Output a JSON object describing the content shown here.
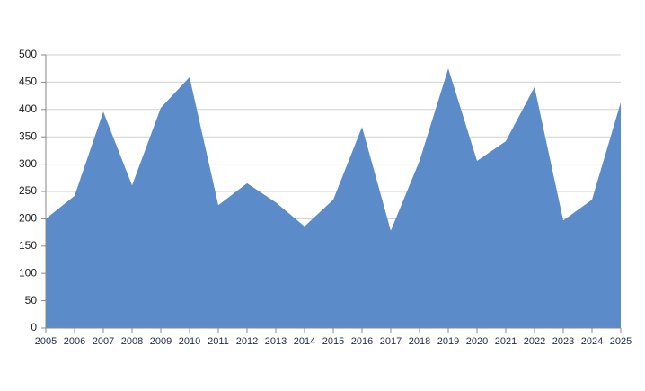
{
  "chart_data": {
    "type": "area",
    "categories": [
      "2005",
      "2006",
      "2007",
      "2008",
      "2009",
      "2010",
      "2011",
      "2012",
      "2013",
      "2014",
      "2015",
      "2016",
      "2017",
      "2018",
      "2019",
      "2020",
      "2021",
      "2022",
      "2023",
      "2024",
      "2025"
    ],
    "values": [
      200,
      242,
      396,
      261,
      403,
      459,
      225,
      265,
      230,
      186,
      235,
      368,
      178,
      306,
      475,
      306,
      342,
      441,
      197,
      235,
      413
    ],
    "color": "#5b8bc8",
    "ylim": [
      0,
      500
    ],
    "yticks": [
      0,
      50,
      100,
      150,
      200,
      250,
      300,
      350,
      400,
      450,
      500
    ],
    "grid": true
  }
}
